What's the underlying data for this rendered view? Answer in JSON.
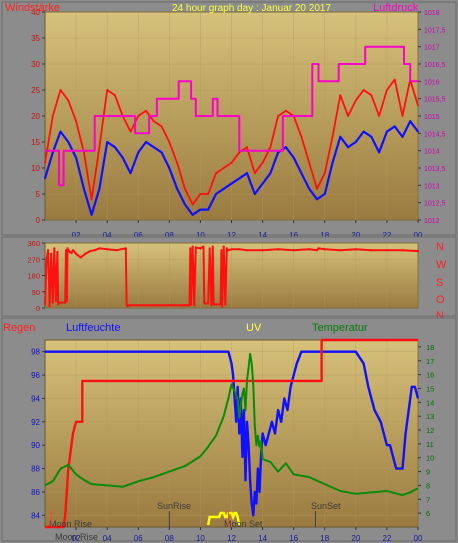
{
  "colors": {
    "frame": "#8c8c8c",
    "plot_top": "#d6c27a",
    "plot_bottom": "#9a7a40",
    "wind": "#ff1010",
    "wind_avg": "#1010ff",
    "pressure": "#ff00c8",
    "direction": "#ff1010",
    "rain": "#ff1010",
    "humidity": "#1010ff",
    "temperature": "#0a8a0a",
    "uv": "#ffff00",
    "sun_marker": "#404040",
    "moon_marker": "#ff4040"
  },
  "header": {
    "wind_label": "Windstärke",
    "title": "24 hour graph day : Januar 20 2017",
    "pressure_label": "Luftdruck"
  },
  "panel2": {
    "compass": [
      "N",
      "W",
      "S",
      "O",
      "N"
    ]
  },
  "panel3": {
    "rain_label": "Regen",
    "humidity_label": "Luftfeuchte",
    "uv_label": "UV",
    "temp_label": "Temperatur"
  },
  "x_ticks": [
    "02",
    "04",
    "06",
    "08",
    "10",
    "12",
    "14",
    "16",
    "18",
    "20",
    "22",
    "00"
  ],
  "annotations": {
    "moon_rise": "Moon Rise",
    "sun_rise": "SunRise",
    "moon_set": "Moon Set",
    "sun_set": "SunSet"
  },
  "chart_data": [
    {
      "type": "line",
      "x_unit": "hour",
      "xlim": [
        0,
        24
      ],
      "y_left": {
        "ylim": [
          0,
          40
        ],
        "ticks": [
          0,
          5,
          10,
          15,
          20,
          25,
          30,
          35,
          40
        ]
      },
      "y_right": {
        "ylim": [
          1012,
          1018
        ],
        "ticks": [
          "1012",
          "1012,5",
          "1013",
          "1013,5",
          "1014",
          "1014,5",
          "1015",
          "1015,5",
          "1016",
          "1016,5",
          "1017",
          "1017,5",
          "1018"
        ]
      },
      "series": [
        {
          "key": "wind_gust",
          "axis": "left",
          "x": [
            0,
            0.5,
            1,
            1.5,
            2,
            2.5,
            3,
            3.5,
            4,
            4.5,
            5,
            5.5,
            6,
            6.5,
            7,
            7.5,
            8,
            8.5,
            9,
            9.5,
            10,
            10.5,
            11,
            11.5,
            12,
            12.5,
            13,
            13.5,
            14,
            14.5,
            15,
            15.5,
            16,
            16.5,
            17,
            17.5,
            18,
            18.5,
            19,
            19.5,
            20,
            20.5,
            21,
            21.5,
            22,
            22.5,
            23,
            23.5,
            24
          ],
          "values": [
            11,
            20,
            25,
            23,
            19,
            13,
            4,
            14,
            25,
            24,
            20,
            17,
            20,
            21,
            19,
            18,
            15,
            11,
            6,
            3,
            5,
            5,
            9,
            10,
            11,
            13,
            14,
            9,
            11,
            14,
            20,
            21,
            20,
            16,
            11,
            6,
            9,
            16,
            24,
            20,
            23,
            25,
            24,
            20,
            25,
            27,
            20,
            27,
            22
          ]
        },
        {
          "key": "wind_avg",
          "axis": "left",
          "x": [
            0,
            0.5,
            1,
            1.5,
            2,
            2.5,
            3,
            3.5,
            4,
            4.5,
            5,
            5.5,
            6,
            6.5,
            7,
            7.5,
            8,
            8.5,
            9,
            9.5,
            10,
            10.5,
            11,
            11.5,
            12,
            12.5,
            13,
            13.5,
            14,
            14.5,
            15,
            15.5,
            16,
            16.5,
            17,
            17.5,
            18,
            18.5,
            19,
            19.5,
            20,
            20.5,
            21,
            21.5,
            22,
            22.5,
            23,
            23.5,
            24
          ],
          "values": [
            8,
            13,
            17,
            15,
            12,
            6,
            1,
            6,
            15,
            14,
            12,
            9,
            13,
            15,
            14,
            13,
            10,
            6,
            3,
            1,
            2,
            2,
            5,
            6,
            7,
            8,
            9,
            5,
            7,
            9,
            13,
            14,
            12,
            9,
            6,
            4,
            5,
            11,
            16,
            14,
            15,
            17,
            16,
            13,
            17,
            18,
            16,
            19,
            17
          ]
        },
        {
          "key": "pressure",
          "axis": "right",
          "x": [
            0,
            0.9,
            0.9,
            1.2,
            1.2,
            1.6,
            1.6,
            3.2,
            3.2,
            5.8,
            5.8,
            6.7,
            6.7,
            7.2,
            7.2,
            8.6,
            8.6,
            9.4,
            9.4,
            9.7,
            9.7,
            10.8,
            10.8,
            11.1,
            11.1,
            12.5,
            12.5,
            15.3,
            15.3,
            17.2,
            17.2,
            17.6,
            17.6,
            18.9,
            18.9,
            20.6,
            20.6,
            23.1,
            23.1,
            23.5,
            23.5,
            24
          ],
          "values": [
            1014,
            1014,
            1013,
            1013,
            1014,
            1014,
            1014,
            1014,
            1015,
            1015,
            1014.5,
            1014.5,
            1015,
            1015,
            1015.5,
            1015.5,
            1016,
            1016,
            1015.5,
            1015.5,
            1015,
            1015,
            1015.5,
            1015.5,
            1015,
            1015,
            1014,
            1014,
            1015,
            1015,
            1016.5,
            1016.5,
            1016,
            1016,
            1016.5,
            1016.5,
            1017,
            1017,
            1016.5,
            1016.5,
            1016,
            1016
          ]
        }
      ]
    },
    {
      "type": "line",
      "x_unit": "hour",
      "xlim": [
        0,
        24
      ],
      "ylim": [
        0,
        360
      ],
      "y_ticks": [
        0,
        90,
        180,
        270,
        360
      ],
      "series": [
        {
          "key": "wind_direction",
          "x": [
            0,
            0.1,
            0.2,
            0.3,
            0.4,
            0.5,
            0.6,
            0.7,
            0.8,
            0.85,
            0.9,
            1.3,
            1.35,
            1.4,
            1.45,
            1.5,
            1.6,
            1.7,
            1.8,
            2.0,
            2.3,
            2.6,
            2.9,
            3.2,
            3.5,
            4.0,
            4.6,
            5.2,
            5.25,
            5.3,
            5.4,
            6.0,
            7.0,
            8.0,
            9.0,
            9.3,
            9.35,
            9.4,
            9.5,
            9.6,
            9.7,
            10.0,
            10.2,
            10.25,
            10.3,
            10.5,
            10.6,
            10.7,
            10.8,
            10.85,
            10.9,
            11.3,
            11.35,
            11.4,
            11.5,
            11.6,
            11.7,
            11.8,
            12.0,
            12.5,
            13.0,
            14.0,
            15.0,
            16.0,
            17.0,
            17.5,
            17.6,
            18.0,
            19.0,
            20.0,
            21.0,
            22.0,
            23.0,
            24.0
          ],
          "values": [
            20,
            270,
            320,
            10,
            300,
            30,
            330,
            40,
            310,
            20,
            30,
            30,
            320,
            40,
            330,
            320,
            310,
            305,
            320,
            300,
            280,
            300,
            315,
            320,
            330,
            325,
            320,
            330,
            20,
            10,
            15,
            15,
            15,
            15,
            15,
            15,
            330,
            20,
            340,
            15,
            335,
            330,
            340,
            30,
            25,
            25,
            330,
            15,
            340,
            20,
            20,
            20,
            320,
            10,
            340,
            20,
            330,
            320,
            325,
            325,
            320,
            320,
            325,
            320,
            325,
            320,
            330,
            325,
            320,
            325,
            320,
            320,
            320,
            315
          ]
        }
      ]
    },
    {
      "type": "line",
      "x_unit": "hour",
      "xlim": [
        0,
        24
      ],
      "y_left": {
        "ylim": [
          83,
          99
        ],
        "ticks": [
          84,
          86,
          88,
          90,
          92,
          94,
          96,
          98
        ]
      },
      "y_right": {
        "ylim": [
          5,
          18.5
        ],
        "ticks": [
          6,
          7,
          8,
          9,
          10,
          11,
          12,
          13,
          14,
          15,
          16,
          17,
          18
        ]
      },
      "series": [
        {
          "key": "humidity",
          "axis": "left",
          "x": [
            0,
            11.8,
            12.0,
            12.1,
            12.2,
            12.3,
            12.4,
            12.5,
            12.6,
            12.7,
            12.8,
            12.9,
            13.0,
            13.1,
            13.2,
            13.3,
            13.4,
            13.5,
            13.6,
            13.7,
            13.8,
            13.9,
            14.0,
            14.2,
            14.4,
            14.6,
            14.8,
            15.0,
            15.2,
            15.4,
            15.6,
            15.8,
            16.0,
            16.2,
            16.5,
            16.8,
            17.5,
            18.0,
            19.0,
            20.0,
            20.5,
            20.8,
            21.2,
            21.6,
            21.8,
            22.0,
            22.2,
            22.4,
            22.6,
            22.8,
            23.0,
            23.2,
            23.4,
            23.6,
            23.8,
            24.0
          ],
          "values": [
            98,
            98,
            97,
            96,
            94,
            92,
            95,
            91,
            94,
            89,
            93,
            87,
            92,
            90,
            87,
            85,
            84,
            86,
            85,
            88,
            86,
            89,
            91,
            90,
            91,
            92,
            91,
            93,
            92,
            94,
            93,
            95,
            96,
            97,
            98,
            98,
            98,
            98,
            98,
            98,
            97,
            95,
            93,
            92,
            91,
            90,
            90,
            89,
            88,
            88,
            88,
            91,
            93,
            95,
            95,
            94
          ]
        },
        {
          "key": "rain",
          "axis": "left",
          "x": [
            0,
            1.2,
            1.3,
            1.4,
            1.5,
            1.6,
            1.7,
            1.8,
            1.9,
            2.0,
            2.0,
            2.4,
            2.4,
            15.2,
            15.2,
            17.8,
            17.8,
            24
          ],
          "values": [
            83,
            83,
            84,
            86,
            88,
            89,
            90,
            91,
            91.5,
            92,
            92,
            92,
            95.5,
            95.5,
            95.5,
            95.5,
            99,
            99
          ]
        },
        {
          "key": "temperature",
          "axis": "right",
          "x": [
            0,
            0.5,
            1.0,
            1.5,
            2.0,
            2.5,
            3.0,
            4.0,
            5.0,
            6.0,
            7.0,
            8.0,
            9.0,
            10.0,
            10.5,
            11.0,
            11.5,
            11.8,
            12.0,
            12.2,
            12.4,
            12.5,
            12.6,
            12.7,
            12.8,
            12.9,
            13.0,
            13.1,
            13.2,
            13.3,
            13.4,
            13.5,
            13.6,
            13.7,
            13.8,
            13.9,
            14.0,
            14.5,
            15.0,
            15.5,
            16.0,
            17.0,
            18.0,
            19.0,
            20.0,
            21.0,
            22.0,
            23.0,
            23.5,
            24.0
          ],
          "values": [
            8,
            8.3,
            9.2,
            9.5,
            8.8,
            8.4,
            8.1,
            8.0,
            7.9,
            8.3,
            8.6,
            9.0,
            9.4,
            10.1,
            10.8,
            11.6,
            13.0,
            14.3,
            15.3,
            14.8,
            14.2,
            12.9,
            13.8,
            14.6,
            15.0,
            13.4,
            15.6,
            16.5,
            17.5,
            16.8,
            15.2,
            12.3,
            10.9,
            11.6,
            10.8,
            11.2,
            9.9,
            9.7,
            9.0,
            9.6,
            8.8,
            8.6,
            8.1,
            7.6,
            7.4,
            7.5,
            7.6,
            7.3,
            7.5,
            7.8
          ]
        },
        {
          "key": "uv",
          "axis": "none",
          "x": [
            10.5,
            10.6,
            11.0,
            11.2,
            11.3,
            11.5,
            11.6,
            11.7,
            11.8,
            12.0,
            12.1,
            12.2,
            12.3,
            12.4,
            12.5
          ],
          "values": [
            0,
            0.4,
            0.4,
            0.4,
            0.6,
            0.6,
            0.4,
            0.4,
            0.6,
            0.6,
            0.4,
            0.6,
            0.6,
            0.4,
            0
          ]
        }
      ],
      "markers": [
        {
          "key": "moon_rise",
          "x": 0.4
        },
        {
          "key": "sun_rise",
          "x": 8.0
        },
        {
          "key": "moon_set",
          "x": 11.8
        },
        {
          "key": "sun_set",
          "x": 17.4
        }
      ]
    }
  ]
}
